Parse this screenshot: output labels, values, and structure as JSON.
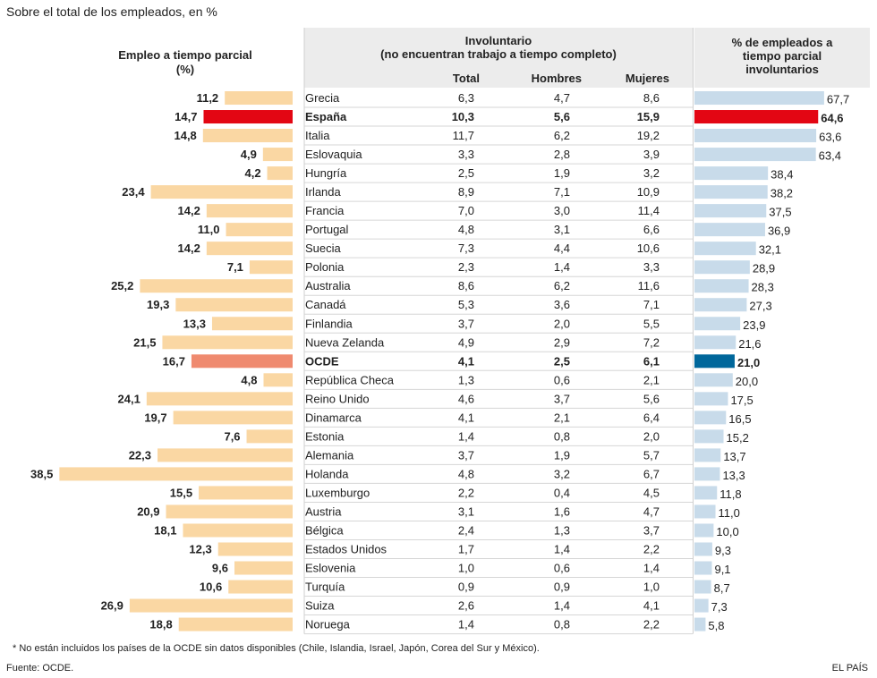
{
  "subtitle": "Sobre el total de los empleados, en %",
  "left_header": [
    "Empleo a tiempo parcial",
    "(%)"
  ],
  "mid_header": [
    "Involuntario",
    "(no encuentran trabajo a tiempo completo)"
  ],
  "columns": {
    "total": "Total",
    "men": "Hombres",
    "women": "Mujeres"
  },
  "right_header": [
    "% de empleados a",
    "tiempo parcial",
    "involuntarios"
  ],
  "footnote": "* No están incluidos los países de la OCDE sin datos disponibles (Chile, Islandia, Israel, Japón, Corea del Sur y México).",
  "source": "Fuente: OCDE.",
  "brand": "EL PAÍS",
  "colors": {
    "part_time_bar": "#fad7a3",
    "part_time_spain": "#e30613",
    "part_time_ocde": "#ef8a6f",
    "involuntary_bar": "#c8dbea",
    "involuntary_spain": "#e30613",
    "involuntary_ocde": "#00679b",
    "header_bg": "#ececec"
  },
  "chart_data": {
    "type": "table",
    "categories": [
      "Grecia",
      "España",
      "Italia",
      "Eslovaquia",
      "Hungría",
      "Irlanda",
      "Francia",
      "Portugal",
      "Suecia",
      "Polonia",
      "Australia",
      "Canadá",
      "Finlandia",
      "Nueva Zelanda",
      "OCDE",
      "República Checa",
      "Reino Unido",
      "Dinamarca",
      "Estonia",
      "Alemania",
      "Holanda",
      "Luxemburgo",
      "Austria",
      "Bélgica",
      "Estados Unidos",
      "Eslovenia",
      "Turquía",
      "Suiza",
      "Noruega"
    ],
    "highlighted": [
      "España",
      "OCDE"
    ],
    "part_time": [
      "11,2",
      "14,7",
      "14,8",
      "4,9",
      "4,2",
      "23,4",
      "14,2",
      "11,0",
      "14,2",
      "7,1",
      "25,2",
      "19,3",
      "13,3",
      "21,5",
      "16,7",
      "4,8",
      "24,1",
      "19,7",
      "7,6",
      "22,3",
      "38,5",
      "15,5",
      "20,9",
      "18,1",
      "12,3",
      "9,6",
      "10,6",
      "26,9",
      "18,8"
    ],
    "involuntary_total": [
      "6,3",
      "10,3",
      "11,7",
      "3,3",
      "2,5",
      "8,9",
      "7,0",
      "4,8",
      "7,3",
      "2,3",
      "8,6",
      "5,3",
      "3,7",
      "4,9",
      "4,1",
      "1,3",
      "4,6",
      "4,1",
      "1,4",
      "3,7",
      "4,8",
      "2,2",
      "3,1",
      "2,4",
      "1,7",
      "1,0",
      "0,9",
      "2,6",
      "1,4"
    ],
    "involuntary_men": [
      "4,7",
      "5,6",
      "6,2",
      "2,8",
      "1,9",
      "7,1",
      "3,0",
      "3,1",
      "4,4",
      "1,4",
      "6,2",
      "3,6",
      "2,0",
      "2,9",
      "2,5",
      "0,6",
      "3,7",
      "2,1",
      "0,8",
      "1,9",
      "3,2",
      "0,4",
      "1,6",
      "1,3",
      "1,4",
      "0,6",
      "0,9",
      "1,4",
      "0,8"
    ],
    "involuntary_women": [
      "8,6",
      "15,9",
      "19,2",
      "3,9",
      "3,2",
      "10,9",
      "11,4",
      "6,6",
      "10,6",
      "3,3",
      "11,6",
      "7,1",
      "5,5",
      "7,2",
      "6,1",
      "2,1",
      "5,6",
      "6,4",
      "2,0",
      "5,7",
      "6,7",
      "4,5",
      "4,7",
      "3,7",
      "2,2",
      "1,4",
      "1,0",
      "4,1",
      "2,2"
    ],
    "involuntary_share": [
      "67,7",
      "64,6",
      "63,6",
      "63,4",
      "38,4",
      "38,2",
      "37,5",
      "36,9",
      "32,1",
      "28,9",
      "28,3",
      "27,3",
      "23,9",
      "21,6",
      "21,0",
      "20,0",
      "17,5",
      "16,5",
      "15,2",
      "13,7",
      "13,3",
      "11,8",
      "11,0",
      "10,0",
      "9,3",
      "9,1",
      "8,7",
      "7,3",
      "5,8"
    ]
  }
}
